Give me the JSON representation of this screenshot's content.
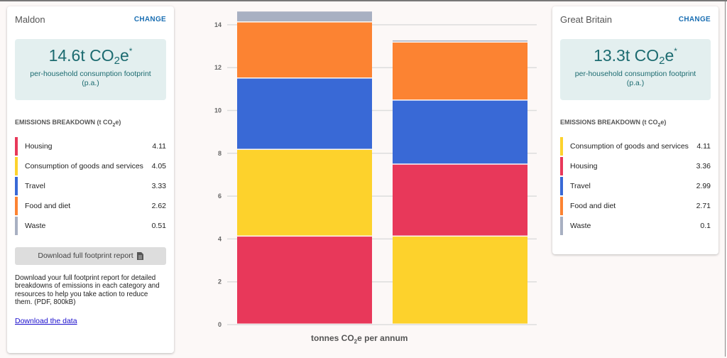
{
  "left": {
    "name": "Maldon",
    "change": "CHANGE",
    "value": "14.6t",
    "unit_prefix": "CO",
    "unit_sub": "2",
    "unit_suffix": "e",
    "asterisk": "*",
    "hero_sub": "per-household consumption footprint (p.a.)",
    "breakdown_title_prefix": "EMISSIONS BREAKDOWN (t CO",
    "breakdown_title_sub": "2",
    "breakdown_title_suffix": "e)",
    "items": [
      {
        "label": "Housing",
        "value": "4.11",
        "color": "#e8385a"
      },
      {
        "label": "Consumption of goods and services",
        "value": "4.05",
        "color": "#fdd22c"
      },
      {
        "label": "Travel",
        "value": "3.33",
        "color": "#3969d6"
      },
      {
        "label": "Food and diet",
        "value": "2.62",
        "color": "#fc8332"
      },
      {
        "label": "Waste",
        "value": "0.51",
        "color": "#a8b0c2"
      }
    ],
    "download_button": "Download full footprint report",
    "download_icon": "document-icon",
    "description": "Download your full footprint report for detailed breakdowns of emissions in each category and resources to help you take action to reduce them. (PDF, 800kB)",
    "data_link": "Download the data"
  },
  "right": {
    "name": "Great Britain",
    "change": "CHANGE",
    "value": "13.3t",
    "unit_prefix": "CO",
    "unit_sub": "2",
    "unit_suffix": "e",
    "asterisk": "*",
    "hero_sub": "per-household consumption footprint (p.a.)",
    "breakdown_title_prefix": "EMISSIONS BREAKDOWN (t CO",
    "breakdown_title_sub": "2",
    "breakdown_title_suffix": "e)",
    "items": [
      {
        "label": "Consumption of goods and services",
        "value": "4.11",
        "color": "#fdd22c"
      },
      {
        "label": "Housing",
        "value": "3.36",
        "color": "#e8385a"
      },
      {
        "label": "Travel",
        "value": "2.99",
        "color": "#3969d6"
      },
      {
        "label": "Food and diet",
        "value": "2.71",
        "color": "#fc8332"
      },
      {
        "label": "Waste",
        "value": "0.1",
        "color": "#a8b0c2"
      }
    ]
  },
  "chart_data": {
    "type": "bar",
    "stacked": true,
    "categories": [
      "Maldon",
      "Great Britain"
    ],
    "series": [
      {
        "name": "Housing",
        "color": "#e8385a",
        "values": [
          4.11,
          3.36
        ]
      },
      {
        "name": "Consumption of goods and services",
        "color": "#fdd22c",
        "values": [
          4.05,
          4.11
        ]
      },
      {
        "name": "Travel",
        "color": "#3969d6",
        "values": [
          3.33,
          2.99
        ]
      },
      {
        "name": "Food and diet",
        "color": "#fc8332",
        "values": [
          2.62,
          2.71
        ]
      },
      {
        "name": "Waste",
        "color": "#a8b0c2",
        "values": [
          0.51,
          0.1
        ]
      }
    ],
    "stack_order": [
      [
        "Housing",
        "Consumption of goods and services",
        "Travel",
        "Food and diet",
        "Waste"
      ],
      [
        "Consumption of goods and services",
        "Housing",
        "Travel",
        "Food and diet",
        "Waste"
      ]
    ],
    "yticks": [
      0,
      2,
      4,
      6,
      8,
      10,
      12,
      14
    ],
    "ylim": [
      0,
      14.6
    ],
    "grid": true,
    "xlabel_prefix": "tonnes CO",
    "xlabel_sub": "2",
    "xlabel_suffix": "e per annum"
  }
}
